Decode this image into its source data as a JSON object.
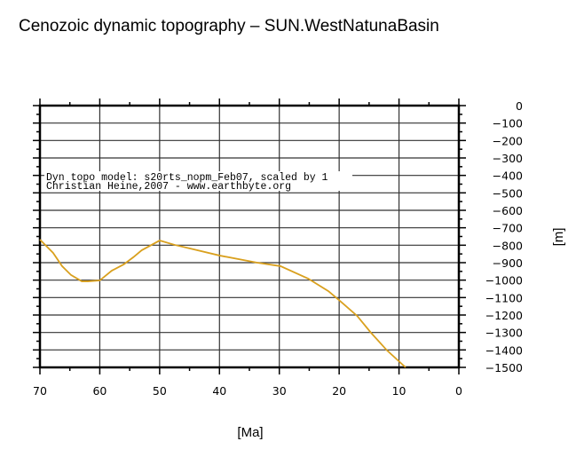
{
  "chart_data": {
    "type": "line",
    "title": "Cenozoic dynamic topography – SUN.WestNatunaBasin",
    "xlabel": "[Ma]",
    "ylabel": "[m]",
    "xlim": [
      70,
      0
    ],
    "ylim": [
      -1500,
      0
    ],
    "x_ticks": [
      70,
      60,
      50,
      40,
      30,
      20,
      10,
      0
    ],
    "y_ticks": [
      0,
      -100,
      -200,
      -300,
      -400,
      -500,
      -600,
      -700,
      -800,
      -900,
      -1000,
      -1100,
      -1200,
      -1300,
      -1400,
      -1500
    ],
    "y_axis_side": "right",
    "x_reversed": true,
    "grid": true,
    "annotation": [
      "Dyn topo model: s20rts_nopm_Feb07, scaled by 1",
      "Christian Heine,2007 - www.earthbyte.org"
    ],
    "series": [
      {
        "color": "#d9a01e",
        "x": [
          70,
          67.8,
          66.3,
          64.8,
          63,
          62,
          60,
          58,
          56,
          54.4,
          53,
          50,
          47.5,
          44.3,
          40,
          33.7,
          29.8,
          25.2,
          21.8,
          19.7,
          17,
          14.7,
          12,
          8.9
        ],
        "y": [
          -768,
          -844,
          -920,
          -971,
          -1007,
          -1007,
          -1002,
          -946,
          -910,
          -869,
          -829,
          -773,
          -798,
          -824,
          -859,
          -900,
          -920,
          -991,
          -1063,
          -1124,
          -1205,
          -1301,
          -1403,
          -1500
        ]
      }
    ]
  }
}
